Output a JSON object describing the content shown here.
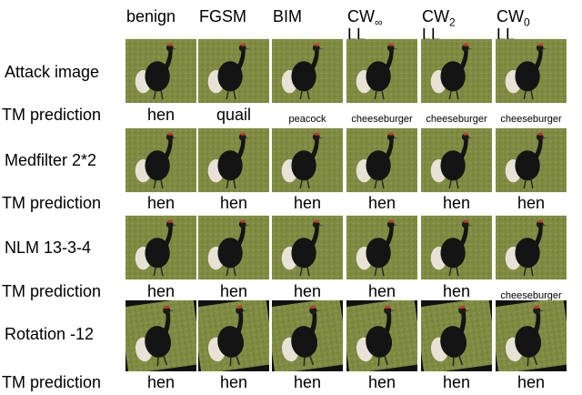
{
  "columns": [
    {
      "label": "benign"
    },
    {
      "label": "FGSM"
    },
    {
      "label": "BIM"
    },
    {
      "label": "CW",
      "sub": "∞",
      "line2": "LL"
    },
    {
      "label": "CW",
      "sub": "2",
      "line2": "LL"
    },
    {
      "label": "CW",
      "sub": "0",
      "line2": "LL"
    }
  ],
  "rows": [
    {
      "label": "Attack image",
      "prediction_label": "TM prediction",
      "predictions": [
        "hen",
        "quail",
        "peacock",
        "cheeseburger",
        "cheeseburger",
        "cheeseburger"
      ]
    },
    {
      "label": "Medfilter 2*2",
      "prediction_label": "TM prediction",
      "predictions": [
        "hen",
        "hen",
        "hen",
        "hen",
        "hen",
        "hen"
      ]
    },
    {
      "label": "NLM 13-3-4",
      "prediction_label": "TM prediction",
      "predictions": [
        "hen",
        "hen",
        "hen",
        "hen",
        "hen",
        "cheeseburger"
      ]
    },
    {
      "label": "Rotation -12",
      "prediction_label": "TM prediction",
      "predictions": [
        "hen",
        "hen",
        "hen",
        "hen",
        "hen",
        "hen"
      ]
    }
  ]
}
